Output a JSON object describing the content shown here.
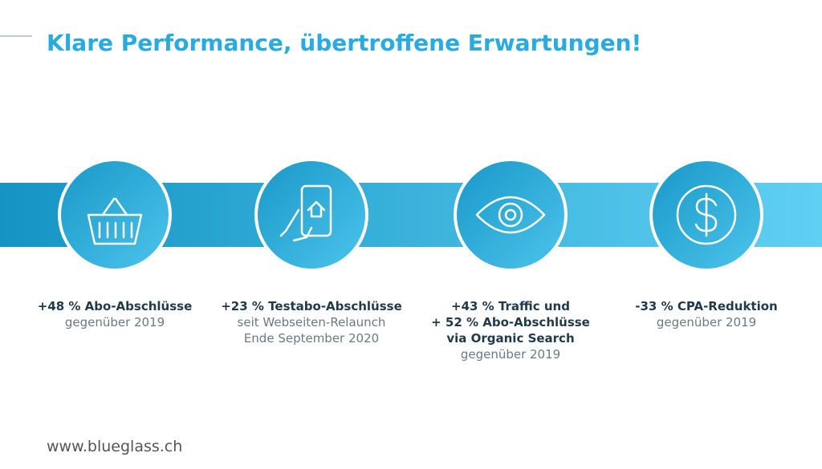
{
  "header": {
    "title": "Klare Performance, übertroffene Erwartungen!"
  },
  "items": [
    {
      "bold": [
        "+48 % Abo-Abschlüsse"
      ],
      "normal": [
        "gegenüber 2019"
      ]
    },
    {
      "bold": [
        "+23 % Testabo-Abschlüsse"
      ],
      "normal": [
        "seit Webseiten-Relaunch",
        "Ende September 2020"
      ]
    },
    {
      "bold": [
        "+43 % Traffic und",
        "+ 52 % Abo-Abschlüsse",
        "via Organic Search"
      ],
      "normal": [
        "gegenüber 2019"
      ]
    },
    {
      "bold": [
        "-33 % CPA-Reduktion"
      ],
      "normal": [
        "gegenüber 2019"
      ]
    }
  ],
  "footer": {
    "url": "www.blueglass.ch"
  }
}
